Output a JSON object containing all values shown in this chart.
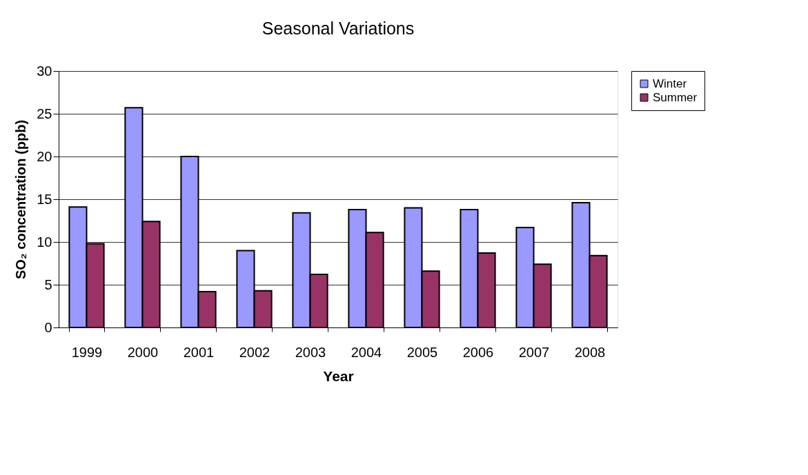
{
  "chart_data": {
    "type": "bar",
    "title": "Seasonal Variations",
    "xlabel": "Year",
    "ylabel": "SO₂ concentration (ppb)",
    "categories": [
      "1999",
      "2000",
      "2001",
      "2002",
      "2003",
      "2004",
      "2005",
      "2006",
      "2007",
      "2008"
    ],
    "series": [
      {
        "name": "Winter",
        "color": "#9999ff",
        "values": [
          14.1,
          25.7,
          20.0,
          9.0,
          13.4,
          13.8,
          14.0,
          13.8,
          11.7,
          14.6
        ]
      },
      {
        "name": "Summer",
        "color": "#993366",
        "values": [
          9.8,
          12.4,
          4.2,
          4.3,
          6.2,
          11.1,
          6.6,
          8.7,
          7.4,
          8.4
        ]
      }
    ],
    "ylim": [
      0,
      30
    ],
    "yticks": [
      0,
      5,
      10,
      15,
      20,
      25,
      30
    ],
    "grid": "y",
    "legend": "right"
  }
}
